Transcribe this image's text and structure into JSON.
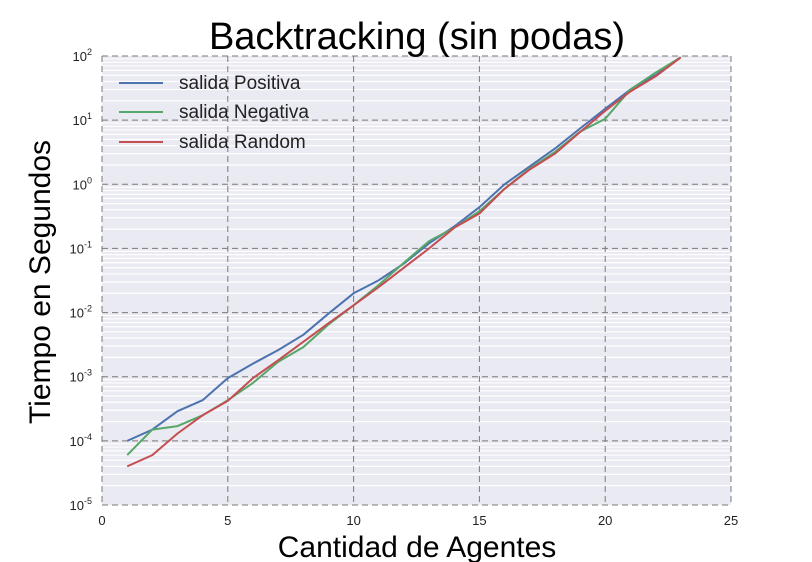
{
  "chart_data": {
    "type": "line",
    "title": "Backtracking (sin podas)",
    "xlabel": "Cantidad de Agentes",
    "ylabel": "Tiempo en Segundos",
    "xlim": [
      0,
      25
    ],
    "ylim": [
      1e-05,
      100
    ],
    "y_scale": "log",
    "x_ticks": [
      0,
      5,
      10,
      15,
      20,
      25
    ],
    "y_ticks": [
      {
        "value": 1e-05,
        "base": "10",
        "exp": "-5"
      },
      {
        "value": 0.0001,
        "base": "10",
        "exp": "-4"
      },
      {
        "value": 0.001,
        "base": "10",
        "exp": "-3"
      },
      {
        "value": 0.01,
        "base": "10",
        "exp": "-2"
      },
      {
        "value": 0.1,
        "base": "10",
        "exp": "-1"
      },
      {
        "value": 1,
        "base": "10",
        "exp": "0"
      },
      {
        "value": 10,
        "base": "10",
        "exp": "1"
      },
      {
        "value": 100,
        "base": "10",
        "exp": "2"
      }
    ],
    "grid": true,
    "legend_position": "top-left",
    "x": [
      1,
      2,
      3,
      4,
      5,
      6,
      7,
      8,
      9,
      10,
      11,
      12,
      13,
      14,
      15,
      16,
      17,
      18,
      19,
      20,
      21,
      22,
      23
    ],
    "series": [
      {
        "name": "salida Positiva",
        "color": "#4c72b0",
        "values": [
          0.0001,
          0.00015,
          0.00029,
          0.00043,
          0.00095,
          0.0016,
          0.0026,
          0.0045,
          0.0096,
          0.02,
          0.032,
          0.058,
          0.12,
          0.22,
          0.44,
          1.0,
          1.9,
          3.6,
          7.4,
          15.0,
          30.0,
          50.0,
          95.0
        ]
      },
      {
        "name": "salida Negativa",
        "color": "#55a868",
        "values": [
          6e-05,
          0.00015,
          0.00017,
          0.00025,
          0.00043,
          0.0008,
          0.0017,
          0.0029,
          0.0065,
          0.013,
          0.027,
          0.06,
          0.13,
          0.21,
          0.38,
          0.85,
          1.75,
          3.2,
          6.6,
          10.5,
          30.0,
          55.0,
          95.0
        ]
      },
      {
        "name": "salida Random",
        "color": "#c44e52",
        "values": [
          4e-05,
          6e-05,
          0.00013,
          0.00025,
          0.00042,
          0.00095,
          0.0018,
          0.0035,
          0.0068,
          0.013,
          0.025,
          0.05,
          0.1,
          0.21,
          0.35,
          0.85,
          1.7,
          3.0,
          6.5,
          14.0,
          28.0,
          48.0,
          95.0
        ]
      }
    ]
  }
}
